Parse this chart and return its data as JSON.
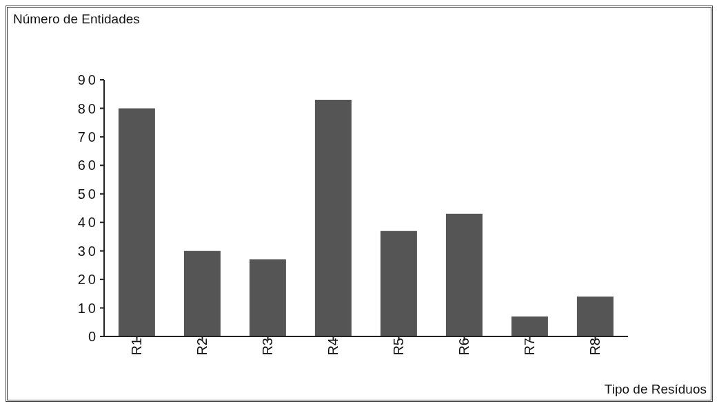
{
  "chart_data": {
    "type": "bar",
    "ylabel": "Número de Entidades",
    "xlabel": "Tipo de Resíduos",
    "categories": [
      "R1",
      "R2",
      "R3",
      "R4",
      "R5",
      "R6",
      "R7",
      "R8"
    ],
    "values": [
      80,
      30,
      27,
      83,
      37,
      43,
      7,
      14
    ],
    "color": "#555555",
    "ylim": [
      0,
      90
    ],
    "yticks": [
      0,
      10,
      20,
      30,
      40,
      50,
      60,
      70,
      80,
      90
    ],
    "grid": false
  }
}
